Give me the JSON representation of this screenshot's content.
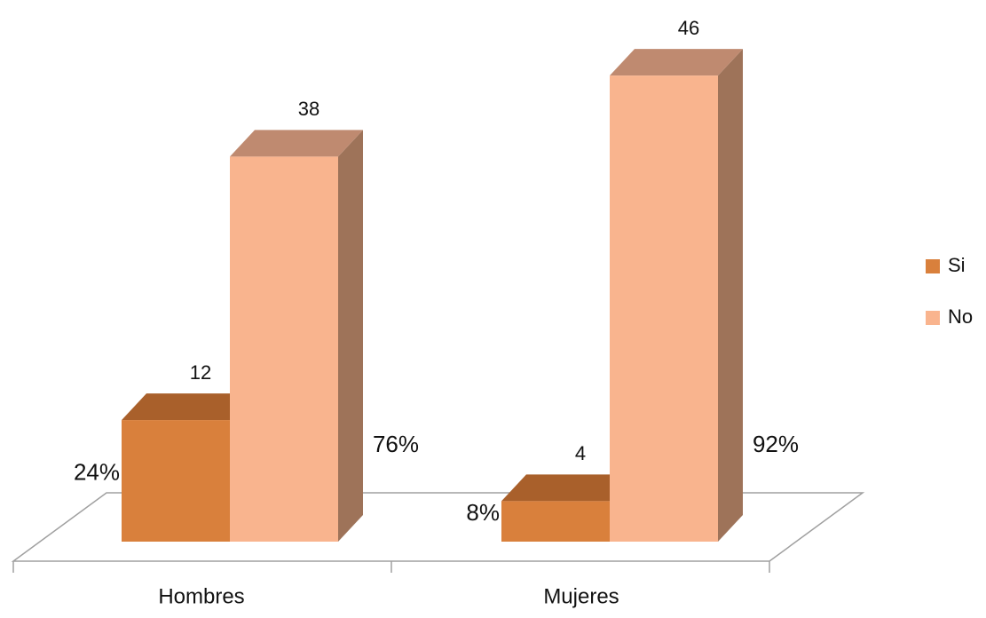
{
  "chart_data": {
    "type": "bar3d",
    "categories": [
      "Hombres",
      "Mujeres"
    ],
    "series": [
      {
        "name": "Si",
        "color": "#d9803c",
        "top_color": "#a9602b",
        "side_color": "#8c5024",
        "values": [
          12,
          4
        ],
        "percent_labels": [
          "24%",
          "8%"
        ]
      },
      {
        "name": "No",
        "color": "#f9b48e",
        "top_color": "#bf8a70",
        "side_color": "#9e7359",
        "values": [
          38,
          46
        ],
        "percent_labels": [
          "76%",
          "92%"
        ]
      }
    ],
    "ylim": [
      0,
      50
    ],
    "legend": "right"
  }
}
